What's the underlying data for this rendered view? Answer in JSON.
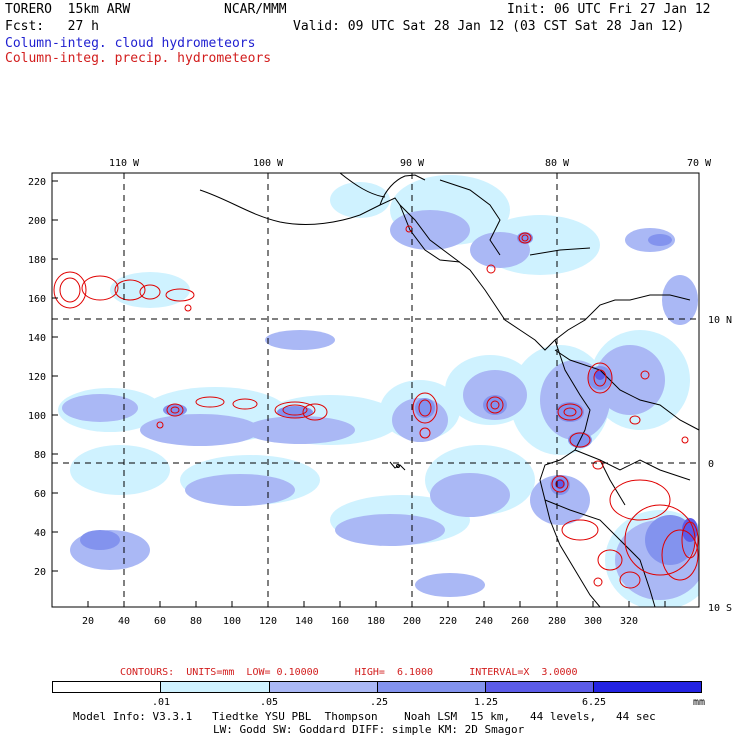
{
  "header": {
    "model": "TORERO  15km ARW",
    "center": "NCAR/MMM",
    "init": "Init: 06 UTC Fri 27 Jan 12",
    "fcst": "Fcst:   27 h",
    "valid": "Valid: 09 UTC Sat 28 Jan 12 (03 CST Sat 28 Jan 12)",
    "field1": "Column-integ. cloud hydrometeors",
    "field2": "Column-integ. precip. hydrometeors"
  },
  "colors": {
    "field1": "#1f1fd0",
    "field2": "#d21d1d",
    "level1": "#cff2ff",
    "level2": "#aab8f5",
    "level3": "#8393ee",
    "level4": "#5c5ce8",
    "level5": "#2323e2",
    "contour": "#e00000"
  },
  "map": {
    "lon_labels": [
      "110 W",
      "100 W",
      "90 W",
      "80 W",
      "70 W"
    ],
    "lat_labels": [
      "10 N",
      "0",
      "10 S"
    ],
    "x_ticks": [
      "20",
      "40",
      "60",
      "80",
      "100",
      "120",
      "140",
      "160",
      "180",
      "200",
      "220",
      "240",
      "260",
      "280",
      "300",
      "320"
    ],
    "y_ticks": [
      "220",
      "200",
      "180",
      "160",
      "140",
      "120",
      "100",
      "80",
      "60",
      "40",
      "20"
    ]
  },
  "contours_line": {
    "text": "CONTOURS:  UNITS=mm  LOW= 0.10000      HIGH=  6.1000      INTERVAL=X  3.0000"
  },
  "legend": {
    "boundaries": [
      ".01",
      ".05",
      ".25",
      "1.25",
      "6.25"
    ],
    "unit": "mm"
  },
  "footer": {
    "line1": "Model Info: V3.3.1   Tiedtke YSU PBL  Thompson    Noah LSM  15 km,   44 levels,   44 sec",
    "line2": "LW: Godd SW: Goddard DIFF: simple KM: 2D Smagor"
  }
}
